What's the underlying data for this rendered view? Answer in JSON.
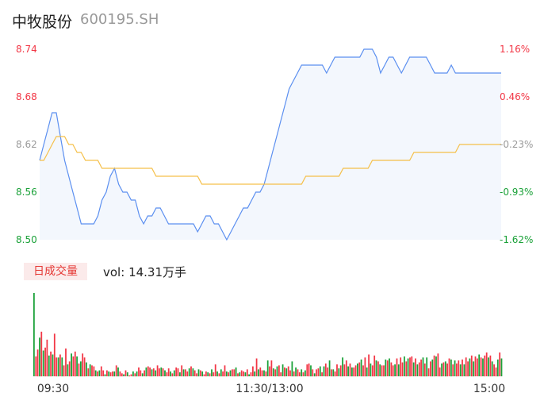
{
  "header": {
    "name": "中牧股份",
    "code": "600195.SH"
  },
  "volume_panel": {
    "badge": "日成交量",
    "vol_label": "vol:",
    "vol_value": "14.31万手"
  },
  "colors": {
    "price_line": "#5b8ff0",
    "avg_line": "#f5c04a",
    "area_fill": "#f3f7fd",
    "up": "#f23645",
    "down": "#1aa138",
    "neutral": "#999999"
  },
  "chart_data": [
    {
      "type": "line",
      "title": "",
      "y_axis_left": {
        "ticks": [
          "8.74",
          "8.68",
          "8.62",
          "8.56",
          "8.50"
        ],
        "range": [
          8.5,
          8.74
        ]
      },
      "y_axis_right": {
        "ticks": [
          "1.16%",
          "0.46%",
          "-0.23%",
          "-0.93%",
          "-1.62%"
        ]
      },
      "x_labels": [
        "09:30",
        "11:30/13:00",
        "15:00"
      ],
      "price_series": [
        8.6,
        8.62,
        8.64,
        8.66,
        8.66,
        8.63,
        8.6,
        8.58,
        8.56,
        8.54,
        8.52,
        8.52,
        8.52,
        8.52,
        8.53,
        8.55,
        8.56,
        8.58,
        8.59,
        8.57,
        8.56,
        8.56,
        8.55,
        8.55,
        8.53,
        8.52,
        8.53,
        8.53,
        8.54,
        8.54,
        8.53,
        8.52,
        8.52,
        8.52,
        8.52,
        8.52,
        8.52,
        8.52,
        8.51,
        8.52,
        8.53,
        8.53,
        8.52,
        8.52,
        8.51,
        8.5,
        8.51,
        8.52,
        8.53,
        8.54,
        8.54,
        8.55,
        8.56,
        8.56,
        8.57,
        8.59,
        8.61,
        8.63,
        8.65,
        8.67,
        8.69,
        8.7,
        8.71,
        8.72,
        8.72,
        8.72,
        8.72,
        8.72,
        8.72,
        8.71,
        8.72,
        8.73,
        8.73,
        8.73,
        8.73,
        8.73,
        8.73,
        8.73,
        8.74,
        8.74,
        8.74,
        8.73,
        8.71,
        8.72,
        8.73,
        8.73,
        8.72,
        8.71,
        8.72,
        8.73,
        8.73,
        8.73,
        8.73,
        8.73,
        8.72,
        8.71,
        8.71,
        8.71,
        8.71,
        8.72,
        8.71,
        8.71,
        8.71,
        8.71,
        8.71,
        8.71,
        8.71,
        8.71,
        8.71,
        8.71,
        8.71,
        8.71
      ],
      "avg_series": [
        8.6,
        8.6,
        8.61,
        8.62,
        8.63,
        8.63,
        8.63,
        8.62,
        8.62,
        8.61,
        8.61,
        8.6,
        8.6,
        8.6,
        8.6,
        8.59,
        8.59,
        8.59,
        8.59,
        8.59,
        8.59,
        8.59,
        8.59,
        8.59,
        8.59,
        8.59,
        8.59,
        8.59,
        8.58,
        8.58,
        8.58,
        8.58,
        8.58,
        8.58,
        8.58,
        8.58,
        8.58,
        8.58,
        8.58,
        8.57,
        8.57,
        8.57,
        8.57,
        8.57,
        8.57,
        8.57,
        8.57,
        8.57,
        8.57,
        8.57,
        8.57,
        8.57,
        8.57,
        8.57,
        8.57,
        8.57,
        8.57,
        8.57,
        8.57,
        8.57,
        8.57,
        8.57,
        8.57,
        8.57,
        8.58,
        8.58,
        8.58,
        8.58,
        8.58,
        8.58,
        8.58,
        8.58,
        8.58,
        8.59,
        8.59,
        8.59,
        8.59,
        8.59,
        8.59,
        8.59,
        8.6,
        8.6,
        8.6,
        8.6,
        8.6,
        8.6,
        8.6,
        8.6,
        8.6,
        8.6,
        8.61,
        8.61,
        8.61,
        8.61,
        8.61,
        8.61,
        8.61,
        8.61,
        8.61,
        8.61,
        8.61,
        8.62,
        8.62,
        8.62,
        8.62,
        8.62,
        8.62,
        8.62,
        8.62,
        8.62,
        8.62,
        8.62
      ]
    },
    {
      "type": "bar",
      "title": "",
      "values": [
        84,
        20,
        27,
        39,
        45,
        26,
        29,
        37,
        21,
        25,
        22,
        43,
        19,
        19,
        22,
        19,
        11,
        28,
        12,
        15,
        23,
        20,
        25,
        20,
        13,
        15,
        23,
        19,
        14,
        8,
        12,
        11,
        10,
        6,
        5,
        6,
        10,
        6,
        2,
        6,
        5,
        4,
        5,
        5,
        11,
        9,
        5,
        3,
        2,
        6,
        4,
        1,
        2,
        5,
        3,
        5,
        9,
        6,
        3,
        6,
        9,
        10,
        9,
        7,
        8,
        6,
        11,
        8,
        9,
        8,
        6,
        4,
        8,
        5,
        3,
        6,
        9,
        8,
        4,
        11,
        7,
        7,
        5,
        8,
        10,
        8,
        6,
        3,
        7,
        6,
        5,
        2,
        5,
        4,
        3,
        7,
        4,
        12,
        5,
        3,
        7,
        5,
        11,
        5,
        4,
        6,
        7,
        7,
        9,
        3,
        4,
        6,
        5,
        4,
        7,
        2,
        4,
        10,
        5,
        18,
        7,
        9,
        6,
        6,
        5,
        16,
        10,
        16,
        8,
        7,
        10,
        11,
        4,
        12,
        9,
        8,
        10,
        6,
        15,
        5,
        9,
        7,
        4,
        7,
        4,
        6,
        12,
        13,
        11,
        7,
        3,
        7,
        8,
        10,
        4,
        10,
        13,
        9,
        16,
        7,
        7,
        5,
        12,
        8,
        11,
        19,
        12,
        16,
        10,
        13,
        9,
        9,
        11,
        13,
        14,
        17,
        11,
        19,
        9,
        22,
        13,
        11,
        21,
        16,
        15,
        12,
        11,
        11,
        17,
        16,
        18,
        14,
        11,
        12,
        18,
        12,
        19,
        14,
        20,
        15,
        18,
        19,
        20,
        14,
        18,
        12,
        14,
        17,
        19,
        13,
        19,
        8,
        15,
        17,
        21,
        20,
        23,
        9,
        13,
        14,
        15,
        13,
        18,
        17,
        12,
        16,
        13,
        16,
        12,
        17,
        12,
        19,
        15,
        18,
        21,
        15,
        20,
        18,
        22,
        19,
        18,
        21,
        24,
        19,
        21,
        15,
        12,
        9,
        17,
        24,
        18
      ],
      "colors": "alternating_up_down"
    }
  ]
}
